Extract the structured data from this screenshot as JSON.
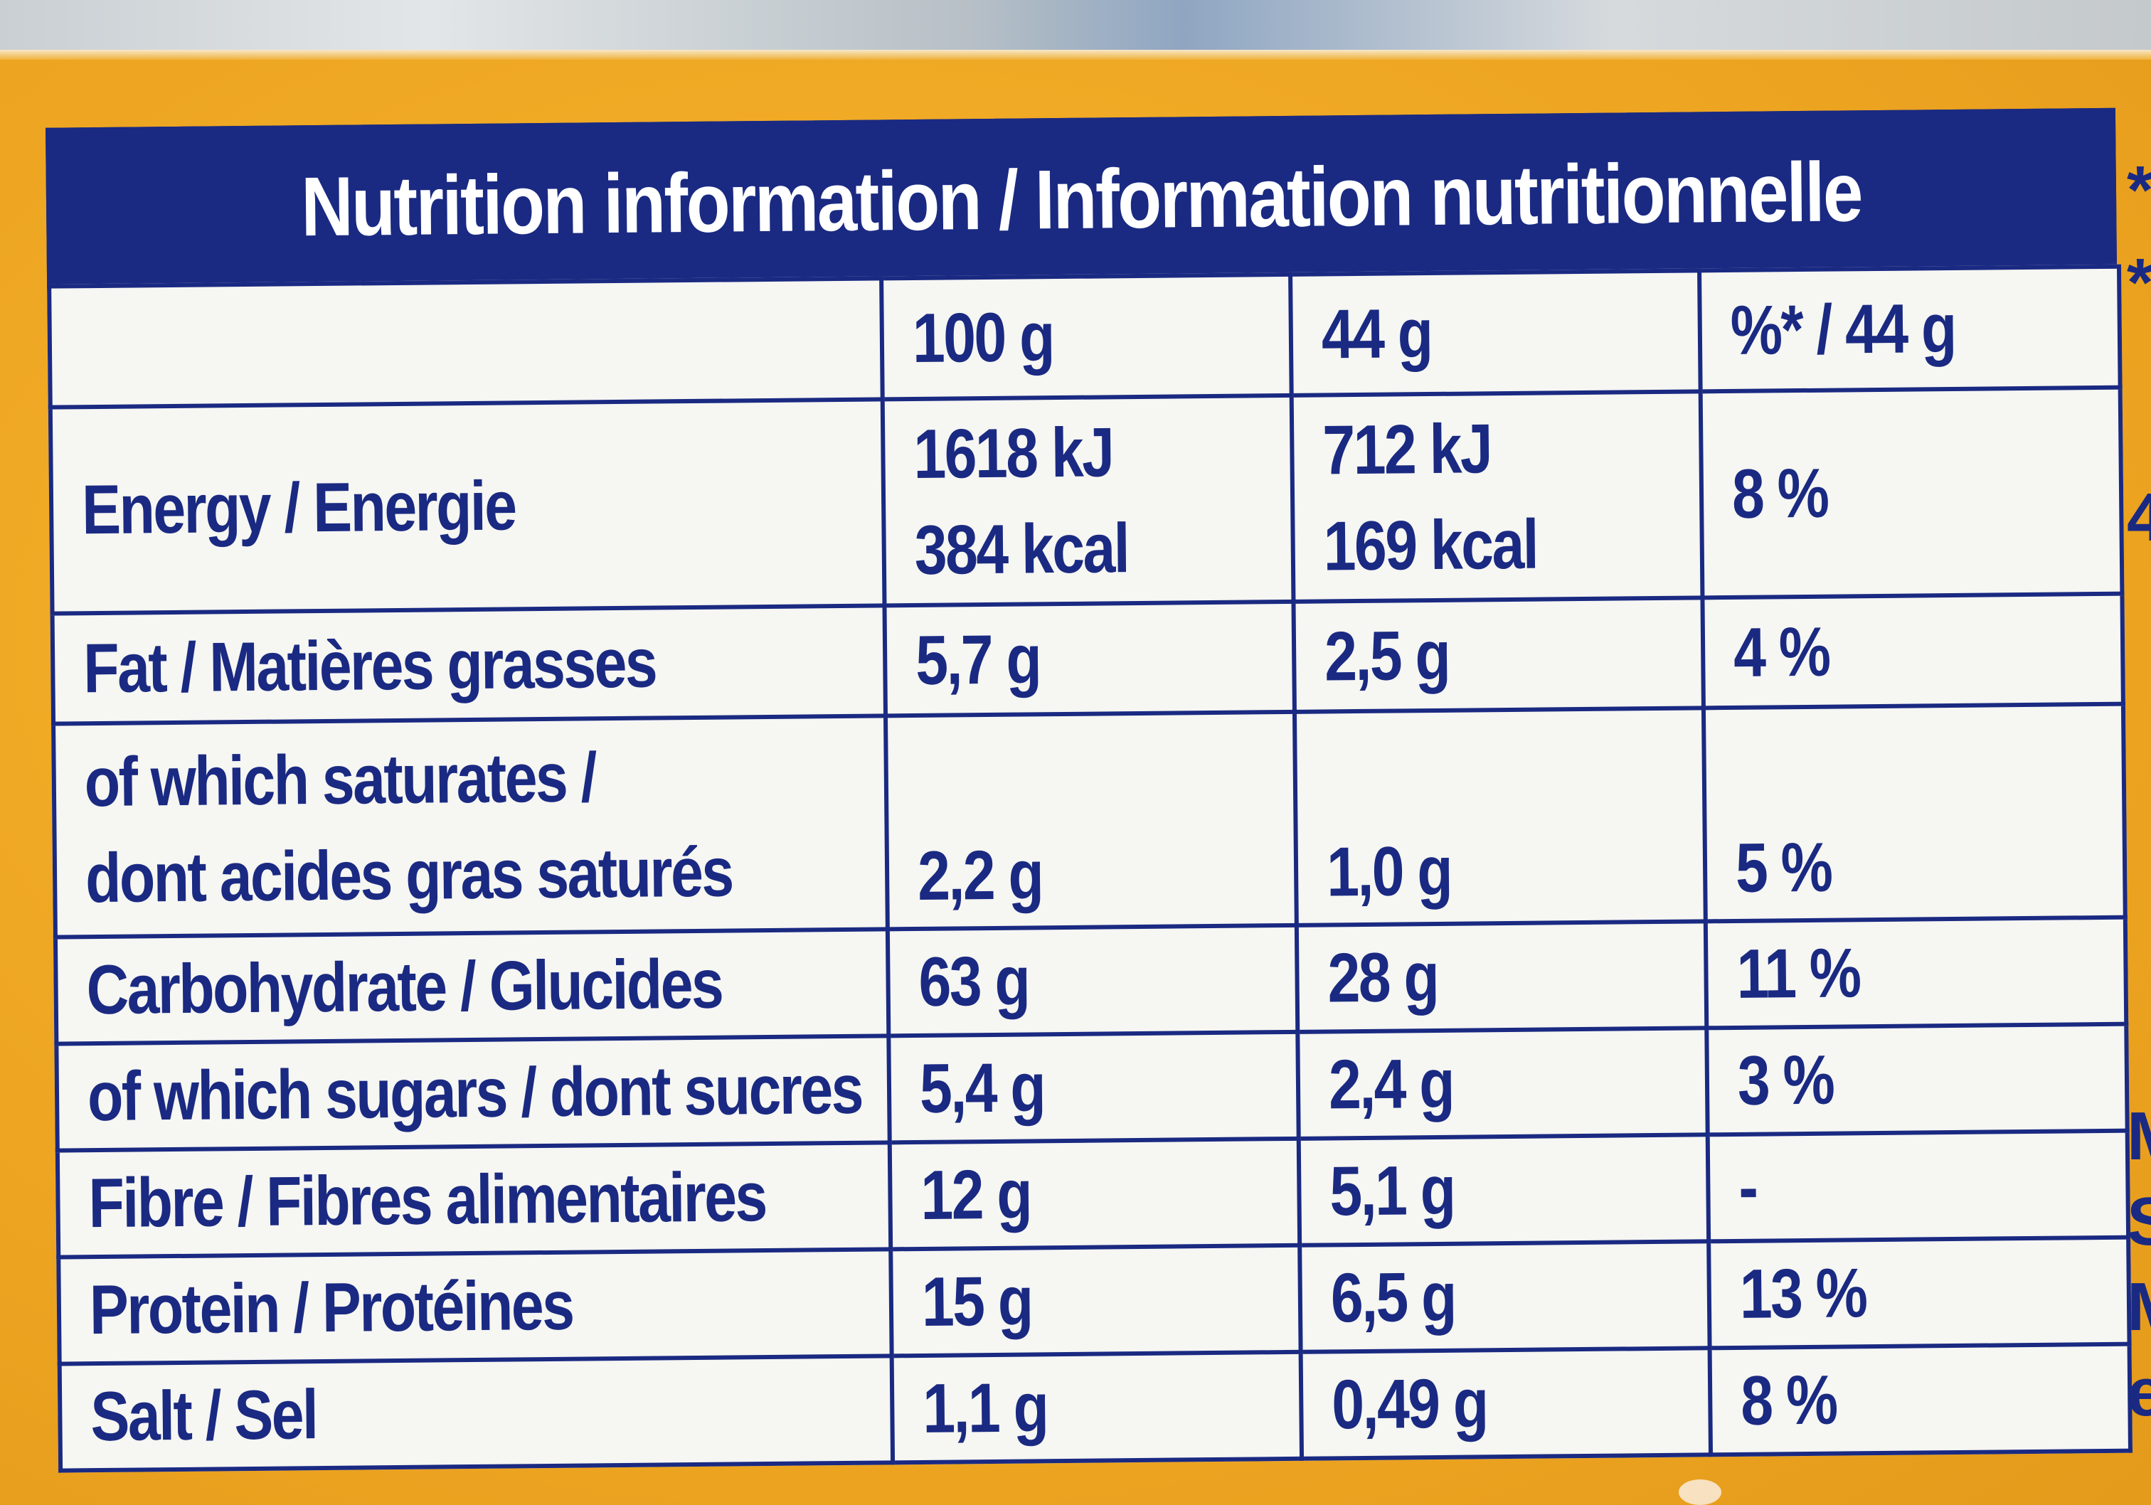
{
  "label": {
    "title": "Nutrition information / Information nutritionnelle",
    "columns": [
      "",
      "100 g",
      "44 g",
      "%* / 44 g"
    ],
    "rows": [
      {
        "label": "Energy / Energie",
        "per100": "1618 kJ\n384 kcal",
        "perPortion": "712 kJ\n169 kcal",
        "ri": "8 %"
      },
      {
        "label": "Fat / Matières grasses",
        "per100": "5,7 g",
        "perPortion": "2,5 g",
        "ri": "4 %"
      },
      {
        "label": "of which saturates /\ndont acides gras saturés",
        "per100": "2,2 g",
        "perPortion": "1,0 g",
        "ri": "5 %"
      },
      {
        "label": "Carbohydrate / Glucides",
        "per100": "63 g",
        "perPortion": "28 g",
        "ri": "11 %"
      },
      {
        "label": "of which sugars / dont sucres",
        "per100": "5,4 g",
        "perPortion": "2,4 g",
        "ri": "3 %"
      },
      {
        "label": "Fibre / Fibres alimentaires",
        "per100": "12 g",
        "perPortion": "5,1 g",
        "ri": "-"
      },
      {
        "label": "Protein / Protéines",
        "per100": "15 g",
        "perPortion": "6,5 g",
        "ri": "13 %"
      },
      {
        "label": "Salt / Sel",
        "per100": "1,1 g",
        "perPortion": "0,49 g",
        "ri": "8 %"
      }
    ]
  },
  "edgeText": [
    "*",
    "*",
    "4",
    "M",
    "S",
    "M",
    "e"
  ],
  "colors": {
    "navy": "#1a2a82",
    "orange": "#f0a81c",
    "cell": "#f6f6f2"
  }
}
